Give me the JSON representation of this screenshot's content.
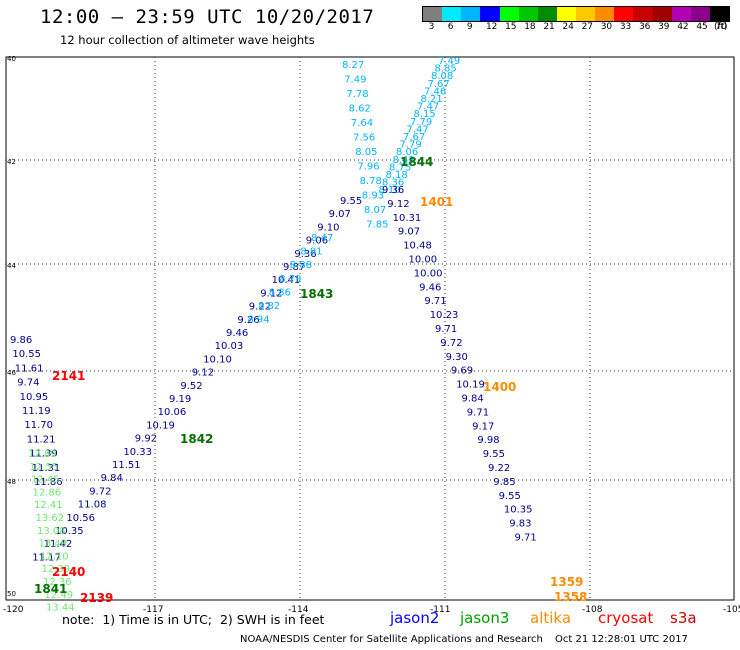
{
  "header": {
    "title": "12:00 — 23:59 UTC 10/20/2017",
    "subtitle": "12 hour collection of altimeter wave heights"
  },
  "colorbar": {
    "unit": "(ft)",
    "colors": [
      "#7f7f7f",
      "#00eaff",
      "#00b4ff",
      "#0000ff",
      "#00ff00",
      "#00c800",
      "#008c00",
      "#ffff00",
      "#ffc800",
      "#ff8c00",
      "#ff0000",
      "#c80000",
      "#a00000",
      "#b400b4",
      "#8c008c",
      "#000000"
    ],
    "labels": [
      "3",
      "6",
      "9",
      "12",
      "15",
      "18",
      "21",
      "24",
      "27",
      "30",
      "33",
      "36",
      "39",
      "42",
      "45",
      "70"
    ]
  },
  "map": {
    "lon_ticks": [
      "-120",
      "-117",
      "-114",
      "-111",
      "-108",
      "-105"
    ],
    "lat_ticks": [
      "40",
      "42",
      "44",
      "46",
      "48",
      "50"
    ],
    "note": "note:  1) Time is in UTC;  2) SWH is in feet"
  },
  "tracks": [
    {
      "name": "jason3_1844_a",
      "color": "#00b4ff",
      "values": [
        "8.27",
        "7.49",
        "7.78",
        "8.62",
        "7.64",
        "7.56",
        "8.05",
        "7.96",
        "8.78",
        "8.93",
        "8.07",
        "7.85"
      ]
    },
    {
      "name": "jason3_1844_b",
      "color": "#00b4ff",
      "values": [
        "7.49",
        "8.85",
        "8.08",
        "7.67",
        "7.46",
        "8.21",
        "7.47",
        "8.15",
        "7.79",
        "7.47",
        "7.67",
        "7.79",
        "8.06",
        "8.42",
        "8.75",
        "8.18",
        "8.36",
        "8.10"
      ]
    },
    {
      "name": "jason2_1843",
      "color": "#00008b",
      "values": [
        "9.55",
        "9.07",
        "9.10",
        "9.06",
        "9.36",
        "9.87",
        "10.41",
        "9.12",
        "9.22",
        "9.26",
        "9.46",
        "10.03",
        "10.10",
        "9.12",
        "9.52",
        "9.19",
        "10.06",
        "10.19",
        "9.92",
        "10.33",
        "11.51",
        "9.84",
        "9.72",
        "11.08",
        "10.56",
        "10.35",
        "11.42",
        "11.17"
      ]
    },
    {
      "name": "jason3_1843",
      "color": "#00b4ff",
      "values": [
        "8.47",
        "8.81",
        "8.88",
        "8.79",
        "8.86",
        "8.82",
        "8.94"
      ]
    },
    {
      "name": "jason2_1401",
      "color": "#00008b",
      "values": [
        "9.36",
        "9.12",
        "10.31",
        "9.07",
        "10.48",
        "10.00",
        "10.00",
        "9.46",
        "9.71",
        "10.23",
        "9.71",
        "9.72",
        "9.30",
        "9.69",
        "10.19",
        "9.84",
        "9.71",
        "9.17",
        "9.98",
        "9.55",
        "9.22",
        "9.85",
        "9.55",
        "10.35",
        "9.83",
        "9.71"
      ]
    },
    {
      "name": "jason2_2141",
      "color": "#00008b",
      "values": [
        "9.86",
        "10.55",
        "11.61",
        "9.74",
        "10.95",
        "11.19",
        "11.70",
        "11.21",
        "11.39",
        "11.31",
        "11.86"
      ]
    },
    {
      "name": "jason3_1841",
      "color": "#6ee86e",
      "values": [
        "12.89",
        "12.55",
        "12.45",
        "12.86",
        "12.41",
        "13.62",
        "13.08",
        "13.49",
        "12.10",
        "12.39",
        "12.36",
        "12.49",
        "13.44"
      ]
    }
  ],
  "pass_labels": [
    {
      "text": "1844",
      "color": "#007000"
    },
    {
      "text": "1401",
      "color": "#ff8c00"
    },
    {
      "text": "1843",
      "color": "#007000"
    },
    {
      "text": "1842",
      "color": "#007000"
    },
    {
      "text": "1400",
      "color": "#ff8c00"
    },
    {
      "text": "2141",
      "color": "#ff0000"
    },
    {
      "text": "2140",
      "color": "#ff0000"
    },
    {
      "text": "1841",
      "color": "#007000"
    },
    {
      "text": "2139",
      "color": "#ff0000"
    },
    {
      "text": "1359",
      "color": "#ff8c00"
    },
    {
      "text": "1358",
      "color": "#ff8c00"
    }
  ],
  "legend": [
    {
      "text": "jason2",
      "color": "#0000ff"
    },
    {
      "text": "jason3",
      "color": "#00a000"
    },
    {
      "text": "altika",
      "color": "#ff8c00"
    },
    {
      "text": "cryosat",
      "color": "#ff0000"
    },
    {
      "text": "s3a",
      "color": "#c80000"
    }
  ],
  "footer": {
    "agency": "NOAA/NESDIS Center for Satellite Applications and Research",
    "timestamp": "Oct 21 12:28:01 UTC 2017"
  }
}
